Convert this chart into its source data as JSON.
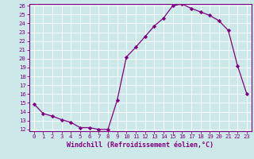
{
  "x": [
    0,
    1,
    2,
    3,
    4,
    5,
    6,
    7,
    8,
    9,
    10,
    11,
    12,
    13,
    14,
    15,
    16,
    17,
    18,
    19,
    20,
    21,
    22,
    23
  ],
  "y": [
    14.9,
    13.8,
    13.5,
    13.1,
    12.8,
    12.2,
    12.2,
    12.0,
    12.0,
    15.3,
    20.2,
    21.3,
    22.5,
    23.7,
    24.6,
    26.0,
    26.2,
    25.7,
    25.3,
    24.9,
    24.3,
    23.2,
    19.2,
    16.0
  ],
  "line_color": "#800080",
  "marker": "D",
  "marker_size": 2.2,
  "background_color": "#cce8e8",
  "grid_color": "#ffffff",
  "xlabel": "Windchill (Refroidissement éolien,°C)",
  "ylim": [
    12,
    26
  ],
  "xlim": [
    -0.5,
    23.5
  ],
  "yticks": [
    12,
    13,
    14,
    15,
    16,
    17,
    18,
    19,
    20,
    21,
    22,
    23,
    24,
    25,
    26
  ],
  "xticks": [
    0,
    1,
    2,
    3,
    4,
    5,
    6,
    7,
    8,
    9,
    10,
    11,
    12,
    13,
    14,
    15,
    16,
    17,
    18,
    19,
    20,
    21,
    22,
    23
  ],
  "tick_color": "#800080",
  "tick_fontsize": 5.2,
  "xlabel_fontsize": 6.0,
  "line_width": 0.9,
  "spine_color": "#800080"
}
